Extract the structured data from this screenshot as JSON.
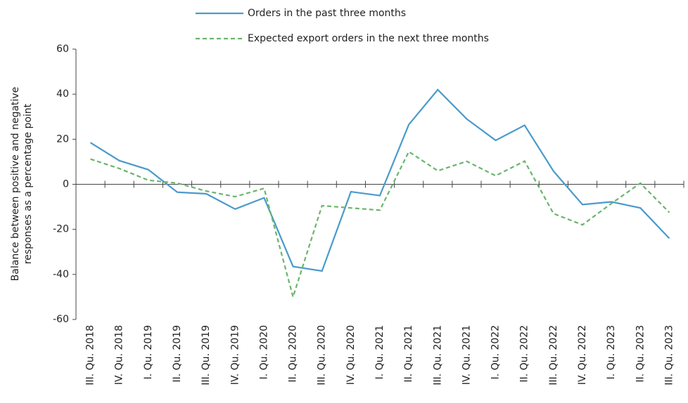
{
  "chart_data": {
    "type": "line",
    "ylabel": [
      "Balance between positive and negative",
      "responses as a percentage point"
    ],
    "categories": [
      "III. Qu. 2018",
      "IV. Qu. 2018",
      "I. Qu. 2019",
      "II. Qu. 2019",
      "III. Qu. 2019",
      "IV. Qu. 2019",
      "I. Qu. 2020",
      "II. Qu. 2020",
      "III. Qu. 2020",
      "IV. Qu. 2020",
      "I. Qu. 2021",
      "II. Qu. 2021",
      "III. Qu. 2021",
      "IV. Qu. 2021",
      "I. Qu. 2022",
      "II. Qu. 2022",
      "III. Qu. 2022",
      "IV. Qu. 2022",
      "I. Qu. 2023",
      "II. Qu. 2023",
      "III. Qu. 2023"
    ],
    "series": [
      {
        "name": "Orders in the past three months",
        "color": "#4a9acb",
        "dash": false,
        "values": [
          18.5,
          10.5,
          6.5,
          -3.5,
          -4.2,
          -11,
          -6,
          -36.5,
          -38.5,
          -3.3,
          -5,
          26.5,
          42,
          29,
          19.5,
          26.2,
          5.8,
          -9,
          -7.8,
          -10.5,
          -24
        ]
      },
      {
        "name": "Expected export orders in the next three months",
        "color": "#6ab56e",
        "dash": true,
        "values": [
          11.2,
          7,
          1.8,
          0.5,
          -3,
          -5.5,
          -1.8,
          -50,
          -9.5,
          -10.5,
          -11.5,
          14.5,
          6,
          10.2,
          3.8,
          10.3,
          -13,
          -18,
          -8.5,
          0.5,
          -12.5
        ]
      }
    ],
    "ylim": [
      -60,
      60
    ],
    "yticks": [
      -60,
      -40,
      -20,
      0,
      20,
      40,
      60
    ]
  }
}
